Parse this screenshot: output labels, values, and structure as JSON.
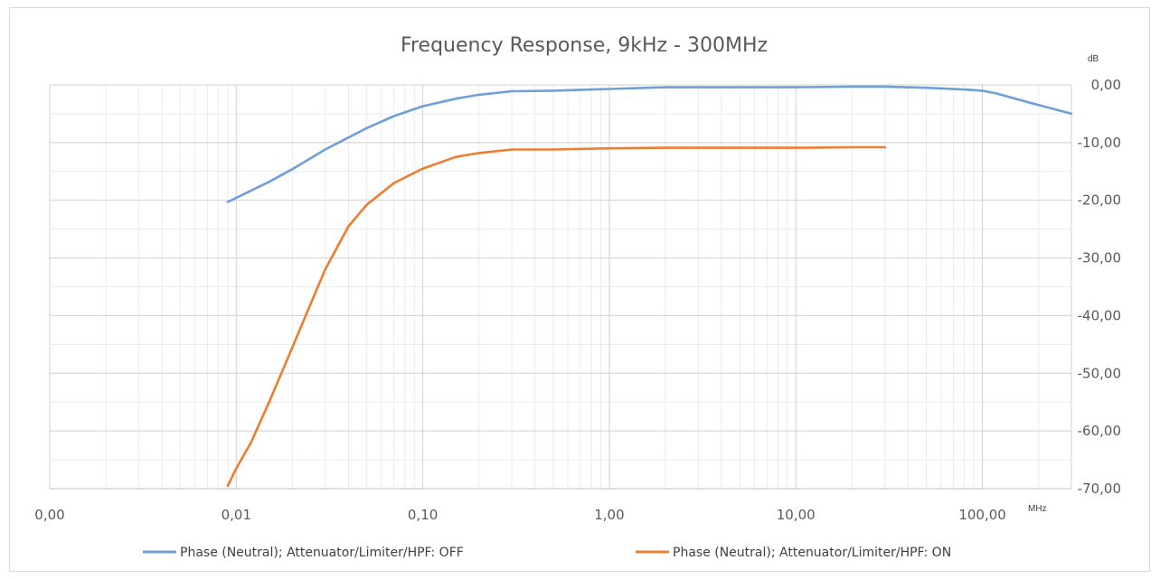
{
  "chart_data": {
    "type": "line",
    "title": "Frequency Response, 9kHz - 300MHz",
    "xlabel": "MHz",
    "ylabel": "dB",
    "x_scale": "log",
    "xlim": [
      0.001,
      300
    ],
    "ylim": [
      -70,
      0
    ],
    "x_tick_values": [
      0.001,
      0.01,
      0.1,
      1,
      10,
      100
    ],
    "x_tick_labels": [
      "0,00",
      "0,01",
      "0,10",
      "1,00",
      "10,00",
      "100,00"
    ],
    "y_tick_values": [
      0,
      -10,
      -20,
      -30,
      -40,
      -50,
      -60,
      -70
    ],
    "y_tick_labels": [
      "0,00",
      "-10,00",
      "-20,00",
      "-30,00",
      "-40,00",
      "-50,00",
      "-60,00",
      "-70,00"
    ],
    "y_axis_position": "right",
    "grid": true,
    "legend_position": "bottom",
    "series": [
      {
        "name": "Phase (Neutral); Attenuator/Limiter/HPF: OFF",
        "color": "#6f9fd8",
        "x": [
          0.009,
          0.015,
          0.02,
          0.03,
          0.05,
          0.07,
          0.1,
          0.15,
          0.2,
          0.3,
          0.5,
          1,
          2,
          5,
          10,
          20,
          30,
          50,
          80,
          100,
          120,
          150,
          200,
          300
        ],
        "y": [
          -20.3,
          -16.8,
          -14.6,
          -11.2,
          -7.5,
          -5.4,
          -3.7,
          -2.4,
          -1.7,
          -1.1,
          -1.0,
          -0.7,
          -0.4,
          -0.4,
          -0.4,
          -0.3,
          -0.3,
          -0.5,
          -0.8,
          -1.0,
          -1.5,
          -2.4,
          -3.5,
          -5.0
        ]
      },
      {
        "name": "Phase (Neutral); Attenuator/Limiter/HPF: ON",
        "color": "#ed7d31",
        "x": [
          0.009,
          0.01,
          0.012,
          0.015,
          0.02,
          0.025,
          0.03,
          0.04,
          0.05,
          0.07,
          0.1,
          0.15,
          0.2,
          0.3,
          0.5,
          1,
          2,
          5,
          10,
          20,
          30
        ],
        "y": [
          -69.5,
          -66.5,
          -62.0,
          -55.0,
          -45.5,
          -38.0,
          -32.0,
          -24.5,
          -20.8,
          -17.0,
          -14.5,
          -12.5,
          -11.8,
          -11.2,
          -11.2,
          -11.0,
          -10.9,
          -10.9,
          -10.9,
          -10.8,
          -10.8
        ]
      }
    ]
  }
}
